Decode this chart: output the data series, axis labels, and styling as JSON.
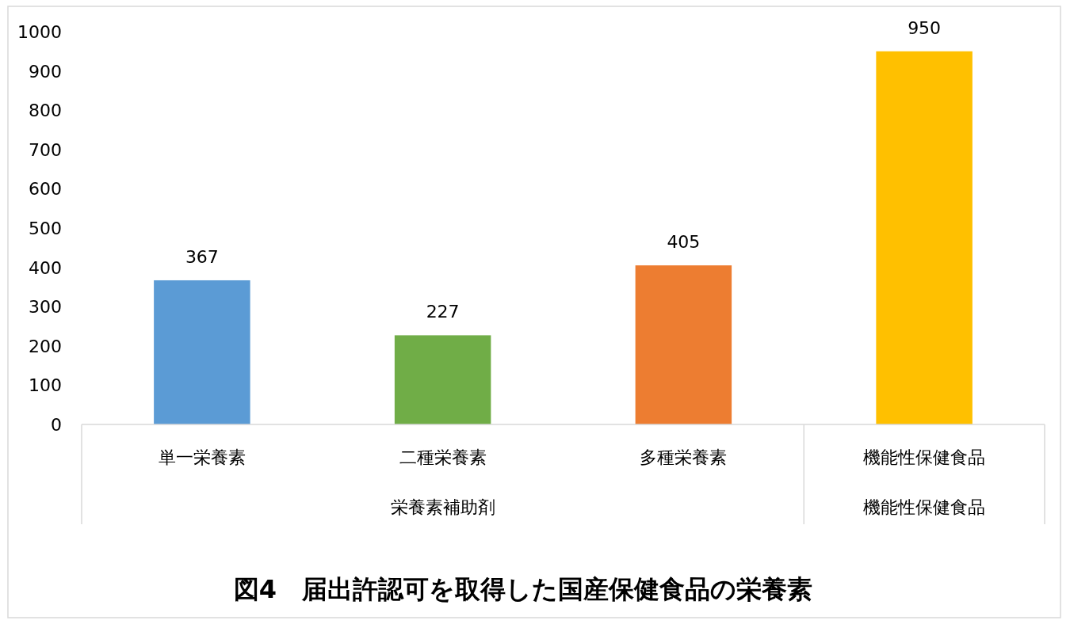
{
  "chart_data": {
    "type": "bar",
    "title": "図4　届出許認可を取得した国産保健食品の栄養素",
    "categories": [
      "単一栄養素",
      "二種栄養素",
      "多種栄養素",
      "機能性保健食品"
    ],
    "values": [
      367,
      227,
      405,
      950
    ],
    "colors": [
      "#5b9bd5",
      "#70ad47",
      "#ed7d31",
      "#ffc000"
    ],
    "ylim": [
      0,
      1000
    ],
    "yticks": [
      0,
      100,
      200,
      300,
      400,
      500,
      600,
      700,
      800,
      900,
      1000
    ],
    "data_labels": true,
    "grid": false,
    "annotations": [
      "栄養素補助剤",
      "機能性保健食品"
    ]
  }
}
